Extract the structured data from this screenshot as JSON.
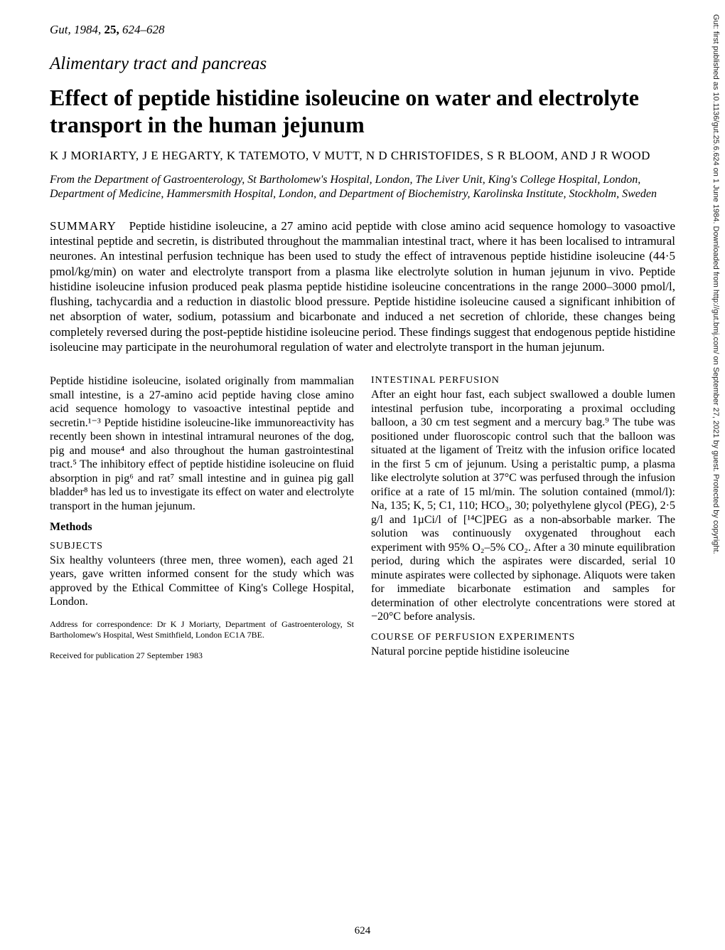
{
  "journal": {
    "name": "Gut,",
    "year": "1984,",
    "volume": "25,",
    "pages": "624–628"
  },
  "section": "Alimentary tract and pancreas",
  "title": "Effect of peptide histidine isoleucine on water and electrolyte transport in the human jejunum",
  "authors": "K J MORIARTY, J E HEGARTY, K TATEMOTO, V MUTT, N D CHRISTOFIDES, S R BLOOM, AND J R WOOD",
  "affiliation": "From the Department of Gastroenterology, St Bartholomew's Hospital, London, The Liver Unit, King's College Hospital, London, Department of Medicine, Hammersmith Hospital, London, and Department of Biochemistry, Karolinska Institute, Stockholm, Sweden",
  "summary_label": "SUMMARY",
  "summary": "Peptide histidine isoleucine, a 27 amino acid peptide with close amino acid sequence homology to vasoactive intestinal peptide and secretin, is distributed throughout the mammalian intestinal tract, where it has been localised to intramural neurones. An intestinal perfusion technique has been used to study the effect of intravenous peptide histidine isoleucine (44·5 pmol/kg/min) on water and electrolyte transport from a plasma like electrolyte solution in human jejunum in vivo. Peptide histidine isoleucine infusion produced peak plasma peptide histidine isoleucine concentrations in the range 2000–3000 pmol/l, flushing, tachycardia and a reduction in diastolic blood pressure. Peptide histidine isoleucine caused a significant inhibition of net absorption of water, sodium, potassium and bicarbonate and induced a net secretion of chloride, these changes being completely reversed during the post-peptide histidine isoleucine period. These findings suggest that endogenous peptide histidine isoleucine may participate in the neurohumoral regulation of water and electrolyte transport in the human jejunum.",
  "left": {
    "p1": "Peptide histidine isoleucine, isolated originally from mammalian small intestine, is a 27-amino acid peptide having close amino acid sequence homology to vasoactive intestinal peptide and secretin.¹⁻³ Peptide histidine isoleucine-like immunoreactivity has recently been shown in intestinal intramural neurones of the dog, pig and mouse⁴ and also throughout the human gastrointestinal tract.⁵ The inhibitory effect of peptide histidine isoleucine on fluid absorption in pig⁶ and rat⁷ small intestine and in guinea pig gall bladder⁸ has led us to investigate its effect on water and electrolyte transport in the human jejunum.",
    "methods": "Methods",
    "subjects_h": "SUBJECTS",
    "subjects": "Six healthy volunteers (three men, three women), each aged 21 years, gave written informed consent for the study which was approved by the Ethical Committee of King's College Hospital, London.",
    "footnote1": "Address for correspondence: Dr K J Moriarty, Department of Gastroenterology, St Bartholomew's Hospital, West Smithfield, London EC1A 7BE.",
    "footnote2": "Received for publication 27 September 1983"
  },
  "right": {
    "perf_h": "INTESTINAL PERFUSION",
    "perf": "After an eight hour fast, each subject swallowed a double lumen intestinal perfusion tube, incorporating a proximal occluding balloon, a 30 cm test segment and a mercury bag.⁹ The tube was positioned under fluoroscopic control such that the balloon was situated at the ligament of Treitz with the infusion orifice located in the first 5 cm of jejunum. Using a peristaltic pump, a plasma like electrolyte solution at 37°C was perfused through the infusion orifice at a rate of 15 ml/min. The solution contained (mmol/l): Na, 135; K, 5; C1, 110; HCO₃, 30; polyethylene glycol (PEG), 2·5 g/l and 1µCi/l of [¹⁴C]PEG as a non-absorbable marker. The solution was continuously oxygenated throughout each experiment with 95% O₂–5% CO₂. After a 30 minute equilibration period, during which the aspirates were discarded, serial 10 minute aspirates were collected by siphonage. Aliquots were taken for immediate bicarbonate estimation and samples for determination of other electrolyte concentrations were stored at −20°C before analysis.",
    "course_h": "COURSE OF PERFUSION EXPERIMENTS",
    "course": "Natural porcine peptide histidine isoleucine"
  },
  "page_number": "624",
  "side_text": "Gut: first published as 10.1136/gut.25.6.624 on 1 June 1984. Downloaded from http://gut.bmj.com/ on September 27, 2021 by guest. Protected by copyright."
}
